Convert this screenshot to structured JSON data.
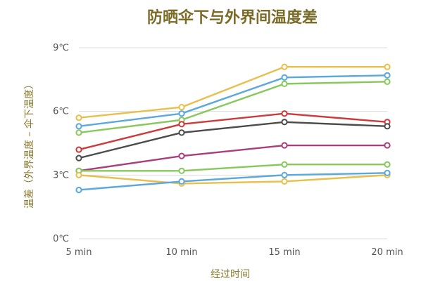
{
  "chart_data": {
    "type": "line",
    "title": "防晒伞下与外界间温度差",
    "xlabel": "经过时间",
    "ylabel": "温差（外界温度 – 伞下温度）",
    "categories": [
      "5 min",
      "10 min",
      "15 min",
      "20 min"
    ],
    "y_ticks": [
      "0℃",
      "3℃",
      "6℃",
      "9℃"
    ],
    "ylim": [
      0,
      9
    ],
    "grid": "horizontal",
    "series": [
      {
        "color": "#e8bf4a",
        "values": [
          5.7,
          6.2,
          8.1,
          8.1
        ]
      },
      {
        "color": "#5aa8dc",
        "values": [
          5.3,
          5.9,
          7.6,
          7.7
        ]
      },
      {
        "color": "#86c95a",
        "values": [
          5.0,
          5.6,
          7.3,
          7.4
        ]
      },
      {
        "color": "#cc3b3b",
        "values": [
          4.2,
          5.4,
          5.9,
          5.5
        ]
      },
      {
        "color": "#4b4b4b",
        "values": [
          3.8,
          5.0,
          5.5,
          5.3
        ]
      },
      {
        "color": "#a83e7a",
        "values": [
          3.2,
          3.9,
          4.4,
          4.4
        ]
      },
      {
        "color": "#86c95a",
        "values": [
          3.2,
          3.2,
          3.5,
          3.5
        ]
      },
      {
        "color": "#e8bf4a",
        "values": [
          3.0,
          2.6,
          2.7,
          3.0
        ]
      },
      {
        "color": "#5aa8dc",
        "values": [
          2.3,
          2.7,
          3.0,
          3.1
        ]
      }
    ]
  }
}
